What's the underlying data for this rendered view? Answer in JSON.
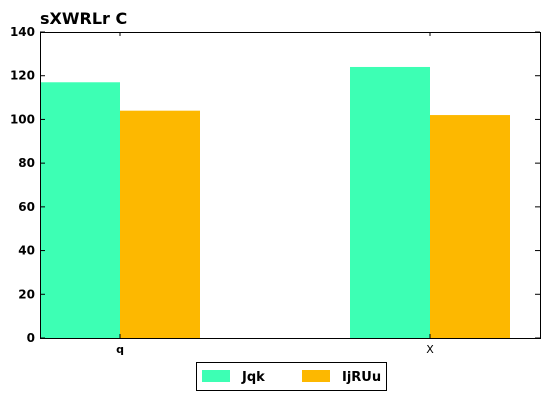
{
  "chart_data": {
    "type": "bar",
    "title": "sXWRLr C",
    "categories": [
      "q",
      "X"
    ],
    "category_label_bold": [
      true,
      false
    ],
    "series": [
      {
        "name": "Jqk",
        "color": "#3dffb4",
        "values": [
          117,
          124
        ]
      },
      {
        "name": "IjRUu",
        "color": "#fdb800",
        "values": [
          104,
          102
        ]
      }
    ],
    "ylim": [
      0,
      140
    ],
    "yticks": [
      0,
      20,
      40,
      60,
      80,
      100,
      120,
      140
    ],
    "xlabel": "",
    "ylabel": "",
    "grid": false,
    "legend_position": "bottom-center"
  }
}
